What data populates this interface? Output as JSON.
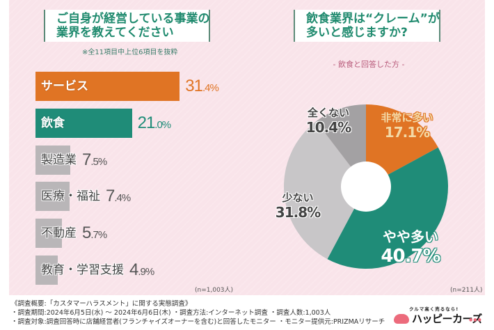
{
  "left_panel": {
    "title_lines": [
      "ご自身が経営している事業の",
      "業界を教えてください"
    ],
    "note": "※全11項目中上位6項目を抜粋",
    "sample_size": "(n=1,003人)"
  },
  "right_panel": {
    "title_lines": [
      "飲食業界は“クレーム”が",
      "多いと感じますか?"
    ],
    "subhead": "- 飲食と回答した方 -",
    "sample_size": "(n=211人)"
  },
  "colors": {
    "orange": "#e07424",
    "teal": "#1f8c78",
    "gray_bar": "#b9b6b8",
    "gray_light": "#c8c6c8",
    "gray_dark": "#a3a1a3",
    "background_pink": "#f9e4ea",
    "title_green": "#1f8a6e"
  },
  "chart_data": [
    {
      "type": "bar",
      "orientation": "horizontal",
      "title": "ご自身が経営している事業の業界を教えてください",
      "note": "※全11項目中上位6項目を抜粋",
      "categories": [
        "サービス",
        "飲食",
        "製造業",
        "医療・福祉",
        "不動産",
        "教育・学習支援"
      ],
      "values": [
        31.4,
        21.0,
        7.5,
        7.4,
        5.7,
        4.9
      ],
      "value_labels": [
        {
          "main": "31",
          "dec": ".4%"
        },
        {
          "main": "21",
          "dec": ".0%"
        },
        {
          "main": "7",
          "dec": ".5%"
        },
        {
          "main": "7",
          "dec": ".4%"
        },
        {
          "main": "5",
          "dec": ".7%"
        },
        {
          "main": "4",
          "dec": ".9%"
        }
      ],
      "highlight": [
        "orange",
        "teal",
        "gray",
        "gray",
        "gray",
        "gray"
      ],
      "unit": "%",
      "n": "n=1,003人"
    },
    {
      "type": "pie",
      "donut": true,
      "title": "飲食業界は“クレーム”が多いと感じますか?",
      "subtitle": "- 飲食と回答した方 -",
      "slices": [
        {
          "label": "非常に多い",
          "value": 17.1,
          "display": "17.1%",
          "color": "#e07424",
          "text_color": "#f3d9a6"
        },
        {
          "label": "やや多い",
          "value": 40.7,
          "display": "40.7%",
          "color": "#1f8c78",
          "text_color": "#ffffff"
        },
        {
          "label": "少ない",
          "value": 31.8,
          "display": "31.8%",
          "color": "#c8c6c8",
          "text_color": "#444444"
        },
        {
          "label": "全くない",
          "value": 10.4,
          "display": "10.4%",
          "color": "#a3a1a3",
          "text_color": "#444444"
        }
      ],
      "start": "12 o'clock, clockwise",
      "n": "n=211人"
    }
  ],
  "footer": {
    "lines": [
      "《調査概要:「カスタマーハラスメント」に関する実態調査》",
      "・調査期間:2024年6月5日(水) 〜 2024年6月6日(木)   ・調査方法:インターネット調査   ・調査人数:1,003人",
      "・調査対象:調査回答時に店舗経営者(フランチャイズオーナーを含む)と回答したモニター   ・モニター提供元:PRIZMAリサーチ"
    ]
  },
  "logo": {
    "tagline": "クルマ高く売るなら!",
    "name": "ハッピーカーズ",
    "dots": "●●●"
  }
}
